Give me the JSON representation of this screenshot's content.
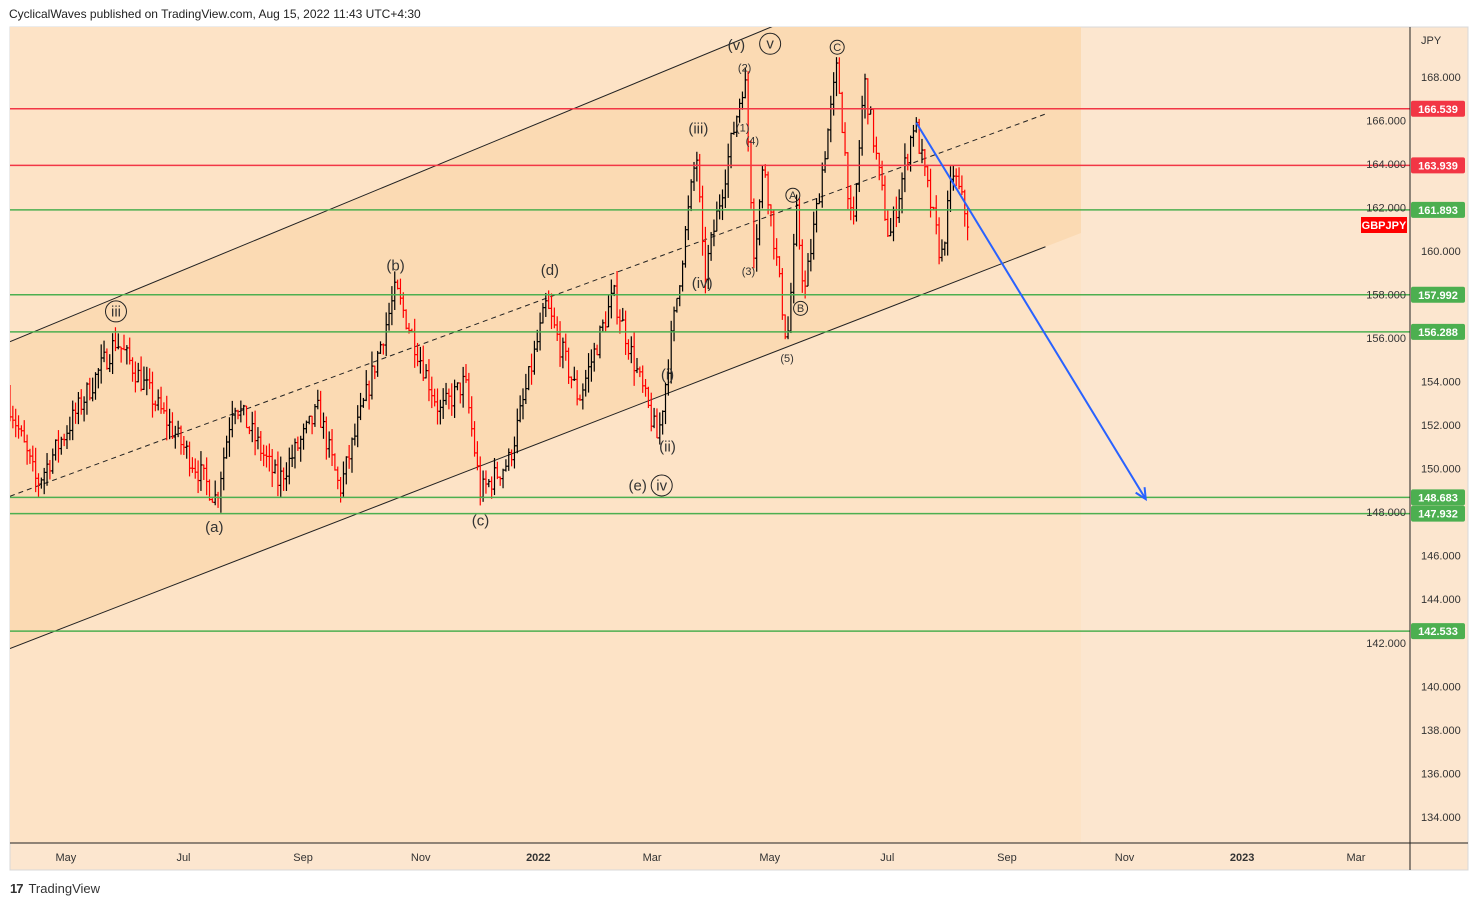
{
  "header": {
    "text": "CyclicalWaves published on TradingView.com, Aug 15, 2022 11:43 UTC+4:30"
  },
  "footer": {
    "brand": "TradingView",
    "logo_glyph": "17"
  },
  "chart_data": {
    "type": "ohlc",
    "symbol": "GBPJPY",
    "currency": "JPY",
    "ylim": [
      132.5,
      170.5
    ],
    "y_ticks": [
      168,
      166,
      164,
      162,
      160,
      158,
      156,
      154,
      152,
      150,
      148,
      146,
      144,
      142,
      140,
      138,
      136,
      134
    ],
    "x_ticks": [
      {
        "label": "May",
        "date": "2021-05-01",
        "bold": false
      },
      {
        "label": "Jul",
        "date": "2021-07-01",
        "bold": false
      },
      {
        "label": "Sep",
        "date": "2021-09-01",
        "bold": false
      },
      {
        "label": "Nov",
        "date": "2021-11-01",
        "bold": false
      },
      {
        "label": "2022",
        "date": "2022-01-01",
        "bold": true
      },
      {
        "label": "Mar",
        "date": "2022-03-01",
        "bold": false
      },
      {
        "label": "May",
        "date": "2022-05-01",
        "bold": false
      },
      {
        "label": "Jul",
        "date": "2022-07-01",
        "bold": false
      },
      {
        "label": "Sep",
        "date": "2022-09-01",
        "bold": false
      },
      {
        "label": "Nov",
        "date": "2022-11-01",
        "bold": false
      },
      {
        "label": "2023",
        "date": "2023-01-01",
        "bold": true
      },
      {
        "label": "Mar",
        "date": "2023-03-01",
        "bold": false
      }
    ],
    "price_path": [
      [
        "2021-04-01",
        153.2
      ],
      [
        "2021-04-16",
        149.3
      ],
      [
        "2021-05-27",
        155.9
      ],
      [
        "2021-07-18",
        148.6
      ],
      [
        "2021-07-27",
        153.2
      ],
      [
        "2021-08-19",
        149.4
      ],
      [
        "2021-09-09",
        152.7
      ],
      [
        "2021-09-20",
        149.0
      ],
      [
        "2021-10-19",
        158.2
      ],
      [
        "2021-11-11",
        152.6
      ],
      [
        "2021-11-24",
        154.0
      ],
      [
        "2021-12-02",
        148.9
      ],
      [
        "2021-12-17",
        150.4
      ],
      [
        "2022-01-05",
        157.5
      ],
      [
        "2022-01-22",
        153.2
      ],
      [
        "2022-02-09",
        158.0
      ],
      [
        "2022-03-04",
        151.3
      ],
      [
        "2022-03-24",
        164.6
      ],
      [
        "2022-03-28",
        158.7
      ],
      [
        "2022-04-18",
        168.1
      ],
      [
        "2022-04-23",
        159.8
      ],
      [
        "2022-04-28",
        164.2
      ],
      [
        "2022-05-10",
        155.7
      ],
      [
        "2022-05-15",
        161.7
      ],
      [
        "2022-05-19",
        158.0
      ],
      [
        "2022-06-05",
        168.5
      ],
      [
        "2022-06-13",
        160.5
      ],
      [
        "2022-06-19",
        167.9
      ],
      [
        "2022-07-02",
        160.5
      ],
      [
        "2022-07-15",
        166.0
      ],
      [
        "2022-07-29",
        159.6
      ],
      [
        "2022-08-04",
        163.7
      ],
      [
        "2022-08-12",
        161.3
      ]
    ],
    "horizontal_levels": [
      {
        "price": "166.539",
        "color": "#f23645"
      },
      {
        "price": "163.939",
        "color": "#f23645"
      },
      {
        "price": "161.893",
        "color": "#4caf50"
      },
      {
        "price": "157.992",
        "color": "#4caf50"
      },
      {
        "price": "156.288",
        "color": "#4caf50"
      },
      {
        "price": "148.683",
        "color": "#4caf50"
      },
      {
        "price": "147.932",
        "color": "#4caf50"
      },
      {
        "price": "142.533",
        "color": "#4caf50"
      }
    ],
    "channel": {
      "upper": [
        [
          "2021-04-01",
          155.8
        ],
        [
          "2022-06-20",
          172.1
        ]
      ],
      "lower": [
        [
          "2021-04-01",
          141.7
        ],
        [
          "2022-09-21",
          160.2
        ]
      ],
      "mid": [
        [
          "2021-04-01",
          148.7
        ],
        [
          "2022-09-21",
          166.3
        ]
      ]
    },
    "projection_arrow": {
      "from": [
        "2022-07-16",
        165.9
      ],
      "to": [
        "2022-11-12",
        148.6
      ],
      "color": "#2962ff"
    },
    "wave_labels": [
      {
        "text": "iii",
        "date": "2021-05-27",
        "price": 157.0,
        "circled": true
      },
      {
        "text": "(a)",
        "date": "2021-07-17",
        "price": 147.1,
        "circled": false
      },
      {
        "text": "(b)",
        "date": "2021-10-19",
        "price": 159.1,
        "circled": false
      },
      {
        "text": "(c)",
        "date": "2021-12-02",
        "price": 147.4,
        "circled": false
      },
      {
        "text": "(d)",
        "date": "2022-01-07",
        "price": 158.9,
        "circled": false
      },
      {
        "text": "(i)",
        "date": "2022-03-09",
        "price": 154.1,
        "circled": false
      },
      {
        "text": "(ii)",
        "date": "2022-03-09",
        "price": 150.8,
        "circled": false
      },
      {
        "text": "(e)",
        "date": "2022-03-06",
        "price": 149.0,
        "circled": false
      },
      {
        "text": "iv",
        "date": "2022-03-06",
        "price": 149.0,
        "circled": true
      },
      {
        "text": "(iii)",
        "date": "2022-03-25",
        "price": 165.4,
        "circled": false
      },
      {
        "text": "(iv)",
        "date": "2022-03-27",
        "price": 158.3,
        "circled": false
      },
      {
        "text": "(v)",
        "date": "2022-04-21",
        "price": 169.1,
        "circled": false
      },
      {
        "text": "v",
        "date": "2022-04-25",
        "price": 169.3,
        "circled": true
      },
      {
        "text": "(2)",
        "date": "2022-04-18",
        "price": 168.8,
        "circled": false,
        "small": true
      },
      {
        "text": "(1)",
        "date": "2022-04-17",
        "price": 165.5,
        "circled": false,
        "small": true
      },
      {
        "text": "(4)",
        "date": "2022-04-22",
        "price": 164.9,
        "circled": false,
        "small": true
      },
      {
        "text": "(3)",
        "date": "2022-04-20",
        "price": 158.9,
        "circled": false,
        "small": true
      },
      {
        "text": "(5)",
        "date": "2022-05-10",
        "price": 154.9,
        "circled": false,
        "small": true
      },
      {
        "text": "A",
        "date": "2022-05-13",
        "price": 162.4,
        "circled": true,
        "small": true
      },
      {
        "text": "B",
        "date": "2022-05-17",
        "price": 157.2,
        "circled": true,
        "small": true
      },
      {
        "text": "C",
        "date": "2022-06-05",
        "price": 169.2,
        "circled": true,
        "small": true
      }
    ],
    "colors": {
      "up": "#000000",
      "down": "#ff0000",
      "background": "#fce6cf",
      "channel_fill": "#fbdab3",
      "symbol_badge": "#ff0000"
    }
  }
}
